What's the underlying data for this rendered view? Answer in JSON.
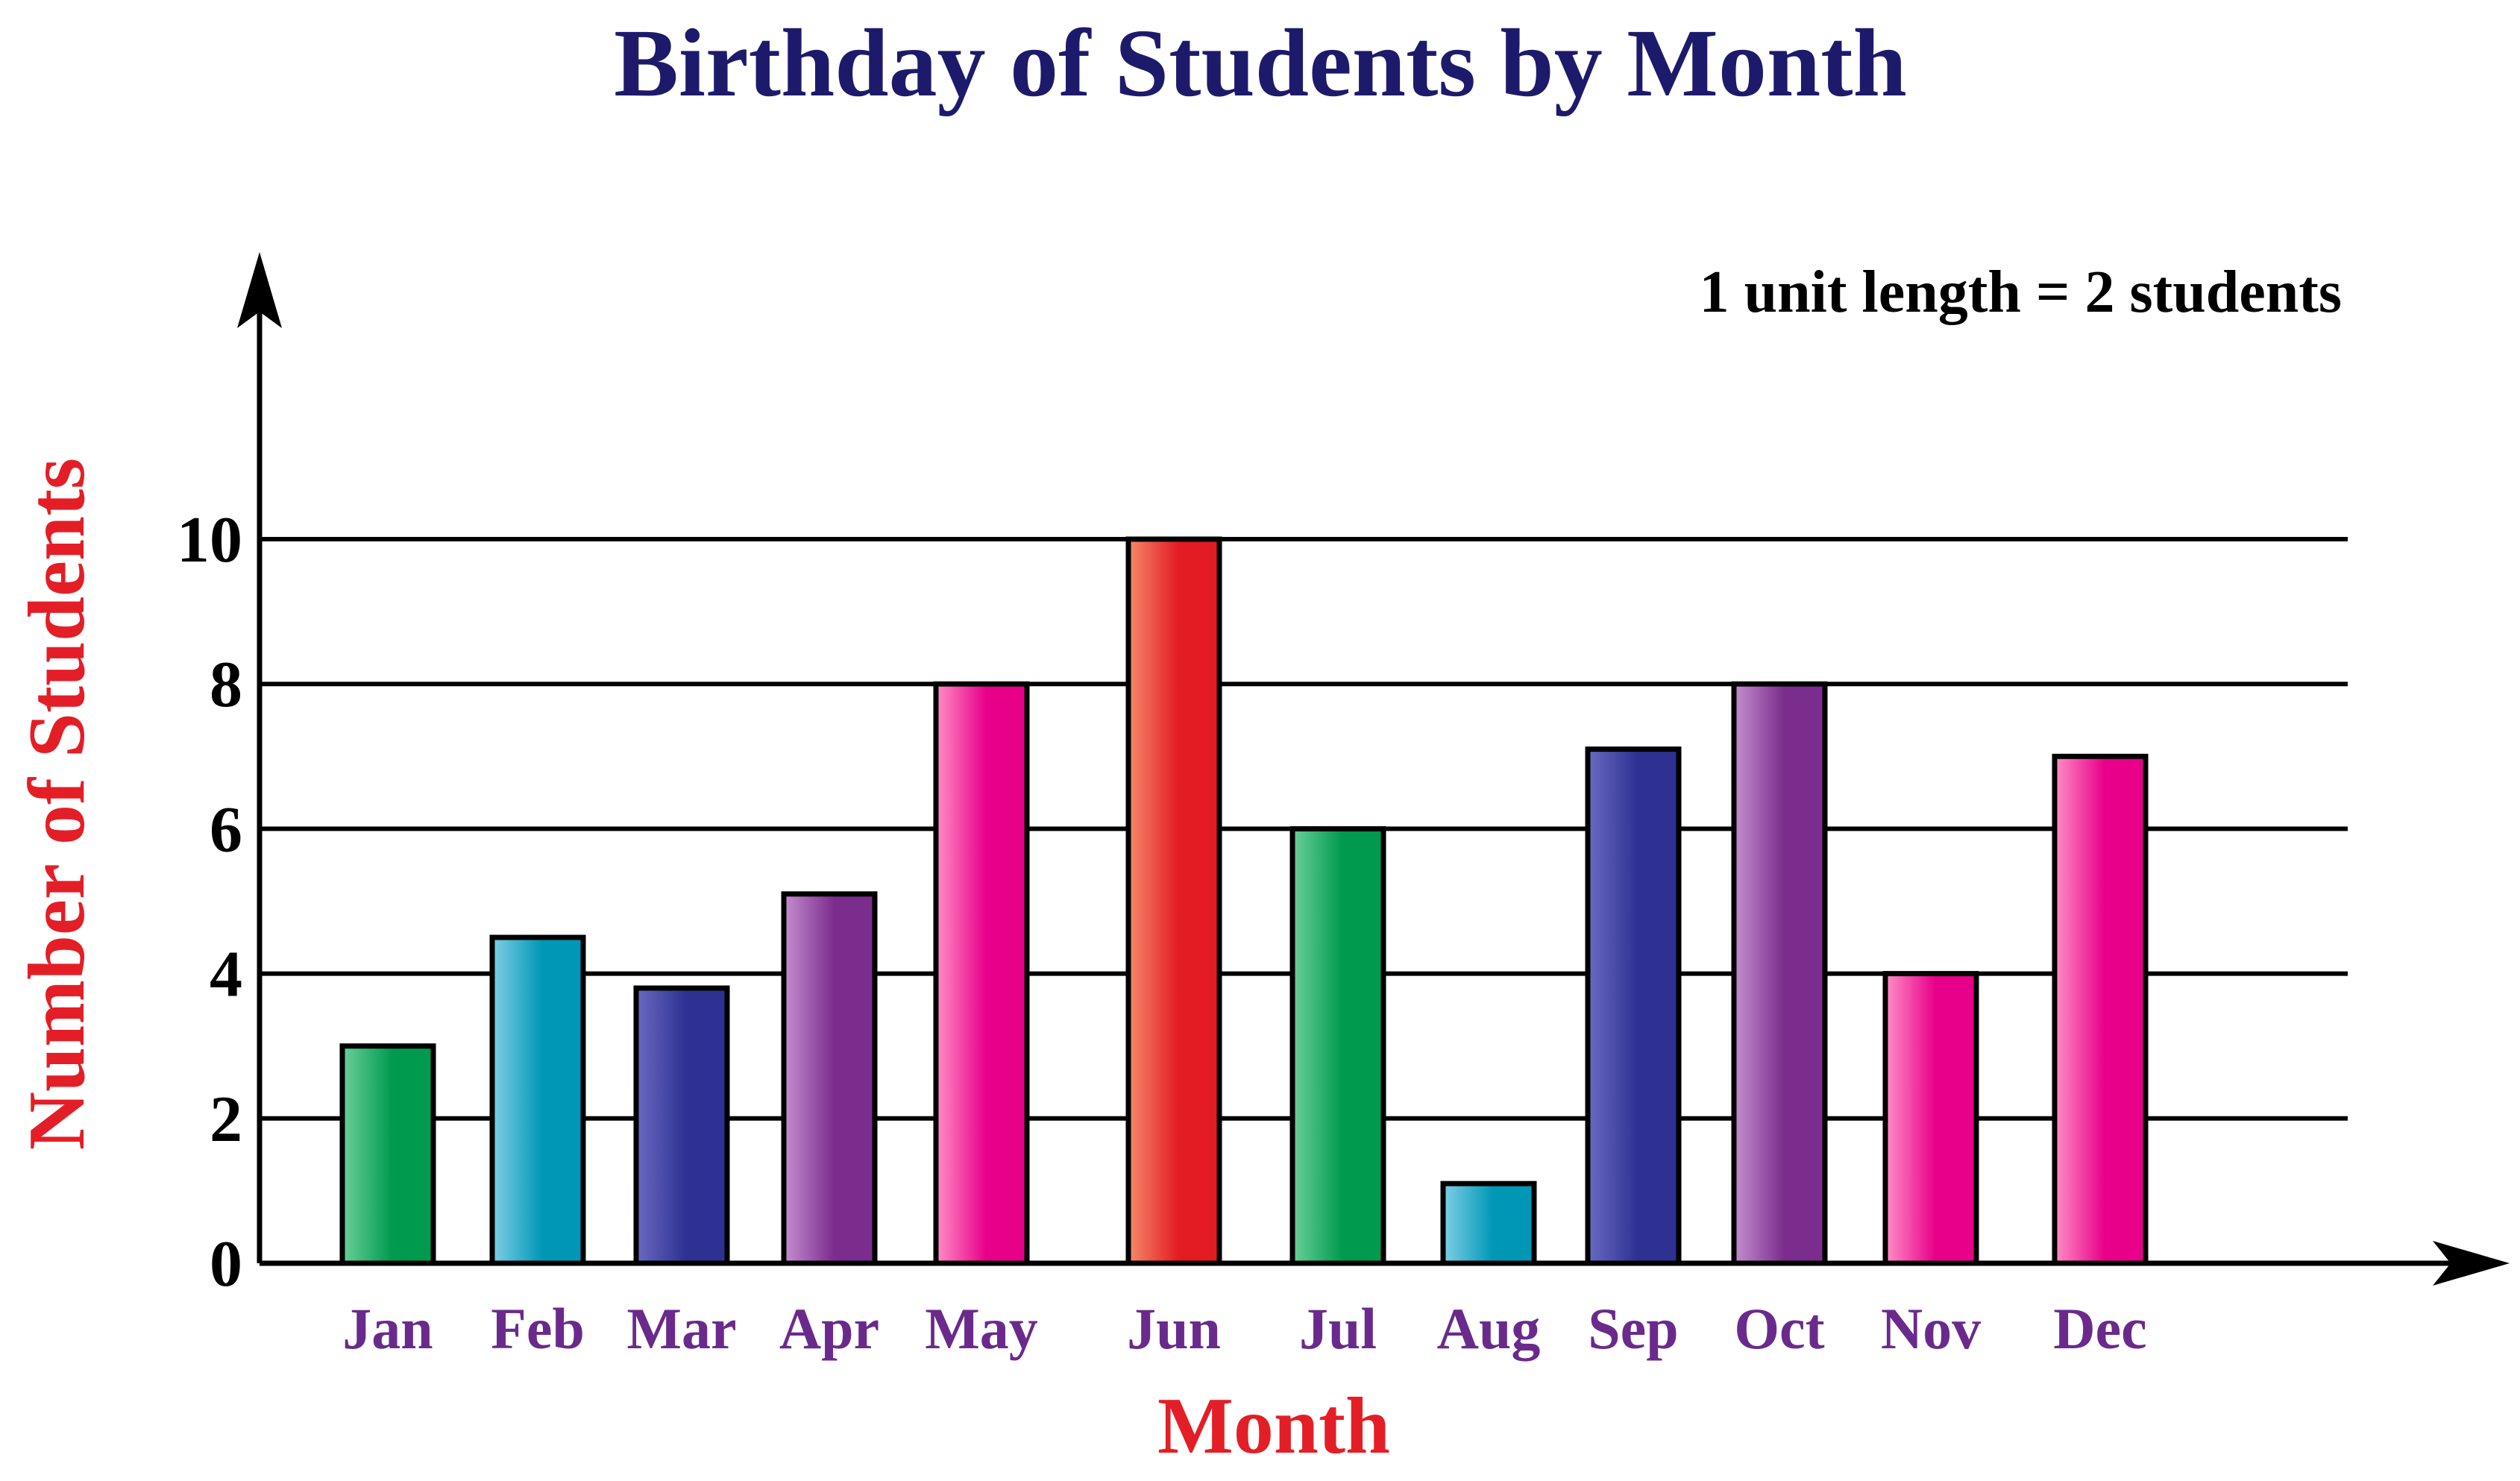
{
  "chart_data": {
    "type": "bar",
    "title": "Birthday of Students by Month",
    "xlabel": "Month",
    "ylabel": "Number of Students",
    "scale_note": "1 unit length = 2 students",
    "categories": [
      "Jan",
      "Feb",
      "Mar",
      "Apr",
      "May",
      "Jun",
      "Jul",
      "Aug",
      "Sep",
      "Oct",
      "Nov",
      "Dec"
    ],
    "values": [
      3,
      4.5,
      3.8,
      5.1,
      8,
      10,
      6,
      1.1,
      7.1,
      8,
      4,
      7
    ],
    "yticks": [
      0,
      2,
      4,
      6,
      8,
      10
    ],
    "ytick_labels": [
      "0",
      "2",
      "4",
      "6",
      "8",
      "10"
    ],
    "ylim": [
      0,
      10
    ],
    "grid": true,
    "bar_colors": [
      [
        "#6ad09a",
        "#009a4e"
      ],
      [
        "#7fd0e6",
        "#0097b7"
      ],
      [
        "#6a6ac2",
        "#2e3192"
      ],
      [
        "#c58fd0",
        "#7b2d8e"
      ],
      [
        "#ff8fc6",
        "#e8008a"
      ],
      [
        "#f58a6a",
        "#e31b23"
      ],
      [
        "#6ad09a",
        "#009a4e"
      ],
      [
        "#7fd0e6",
        "#0097b7"
      ],
      [
        "#6a6ac2",
        "#2e3192"
      ],
      [
        "#c58fd0",
        "#7b2d8e"
      ],
      [
        "#ff8fc6",
        "#e8008a"
      ],
      [
        "#ff8fc6",
        "#e8008a"
      ]
    ],
    "colors": {
      "title": "#1e1a6b",
      "axis_label": "#e41e26",
      "month_label": "#6a2a8c",
      "tick_label": "#000000",
      "axis": "#000000"
    }
  }
}
